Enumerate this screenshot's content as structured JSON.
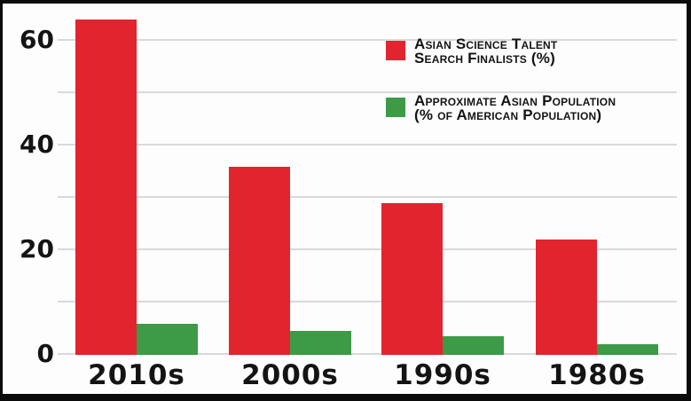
{
  "chart_data": {
    "type": "bar",
    "categories": [
      "2010s",
      "2000s",
      "1990s",
      "1980s"
    ],
    "series": [
      {
        "name": "Asian Science Talent Search Finalists (%)",
        "color": "#e2242e",
        "values": [
          64,
          36,
          29,
          22
        ]
      },
      {
        "name": "Approximate Asian Population (% of American Population)",
        "color": "#3d9a47",
        "values": [
          6,
          4.5,
          3.5,
          2
        ]
      }
    ],
    "ylim": [
      0,
      67
    ],
    "yticks": [
      {
        "label": "0",
        "value": 0
      },
      {
        "label": "20",
        "value": 20
      },
      {
        "label": "40",
        "value": 40
      },
      {
        "label": "60",
        "value": 60
      }
    ],
    "gridline_step": 10,
    "grid": true,
    "legend_position": "top-right",
    "xlabel": "",
    "ylabel": ""
  },
  "legend": {
    "items": [
      {
        "line1": "Asian Science Talent",
        "line2": "Search Finalists (%)",
        "color": "#e2242e"
      },
      {
        "line1": "Approximate Asian Population",
        "line2": "(% of American Population)",
        "color": "#3d9a47"
      }
    ]
  },
  "colors": {
    "red_series": "#e2242e",
    "green_series": "#3d9a47",
    "gridline": "#d9d9d9",
    "text": "#141414",
    "frame_border": "#0b0b0b",
    "background": "#fdfdfd"
  }
}
